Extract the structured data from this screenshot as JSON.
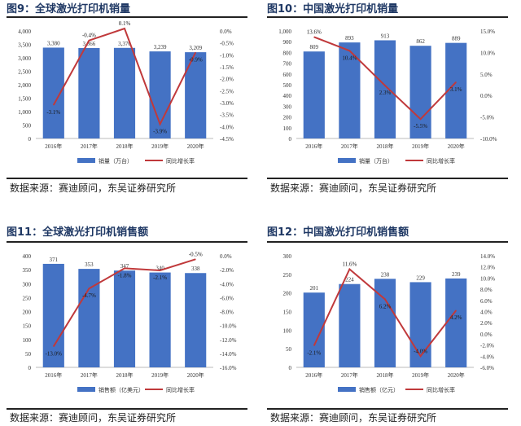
{
  "source_label": "数据来源：赛迪顾问，东吴证券研究所",
  "colors": {
    "bar": "#4472c4",
    "line": "#c0393b",
    "title": "#1f3864"
  },
  "chart_data": [
    {
      "type": "bar+line",
      "title": "图9：全球激光打印机销量",
      "categories": [
        "2016年",
        "2017年",
        "2018年",
        "2019年",
        "2020年"
      ],
      "series": [
        {
          "name": "销量（万台）",
          "type": "bar",
          "axis": "left",
          "values": [
            3380,
            3366,
            3370,
            3239,
            3209
          ],
          "labels": [
            "3,380",
            "3,366",
            "3,370",
            "3,239",
            "3,209"
          ]
        },
        {
          "name": "同比增长率",
          "type": "line",
          "axis": "right",
          "values": [
            -3.1,
            -0.4,
            0.1,
            -3.9,
            -0.9
          ],
          "labels": [
            "-3.1%",
            "-0.4%",
            "0.1%",
            "-3.9%",
            "-0.9%"
          ]
        }
      ],
      "ylim": [
        0,
        4000
      ],
      "yticks": [
        "0",
        "500",
        "1,000",
        "1,500",
        "2,000",
        "2,500",
        "3,000",
        "3,500",
        "4,000"
      ],
      "y2lim": [
        -4.5,
        0
      ],
      "y2ticks": [
        "-4.5%",
        "-4.0%",
        "-3.5%",
        "-3.0%",
        "-2.5%",
        "-2.0%",
        "-1.5%",
        "-1.0%",
        "-0.5%",
        "0.0%"
      ],
      "legend": "bottom"
    },
    {
      "type": "bar+line",
      "title": "图10：中国激光打印机销量",
      "categories": [
        "2016年",
        "2017年",
        "2018年",
        "2019年",
        "2020年"
      ],
      "series": [
        {
          "name": "销量（万台）",
          "type": "bar",
          "axis": "left",
          "values": [
            809,
            893,
            913,
            862,
            889
          ],
          "labels": [
            "809",
            "893",
            "913",
            "862",
            "889"
          ]
        },
        {
          "name": "同比增长率",
          "type": "line",
          "axis": "right",
          "values": [
            13.6,
            10.4,
            2.3,
            -5.5,
            3.1
          ],
          "labels": [
            "13.6%",
            "10.4%",
            "2.3%",
            "-5.5%",
            "3.1%"
          ]
        }
      ],
      "ylim": [
        0,
        1000
      ],
      "yticks": [
        "0",
        "100",
        "200",
        "300",
        "400",
        "500",
        "600",
        "700",
        "800",
        "900",
        "1,000"
      ],
      "y2lim": [
        -10,
        15
      ],
      "y2ticks": [
        "-10.0%",
        "-5.0%",
        "0.0%",
        "5.0%",
        "10.0%",
        "15.0%"
      ],
      "legend": "bottom"
    },
    {
      "type": "bar+line",
      "title": "图11：全球激光打印机销售额",
      "categories": [
        "2016年",
        "2017年",
        "2018年",
        "2019年",
        "2020年"
      ],
      "series": [
        {
          "name": "销售额（亿美元）",
          "type": "bar",
          "axis": "left",
          "values": [
            371,
            353,
            347,
            340,
            338
          ],
          "labels": [
            "371",
            "353",
            "347",
            "340",
            "338"
          ]
        },
        {
          "name": "同比增长率",
          "type": "line",
          "axis": "right",
          "values": [
            -13.0,
            -4.7,
            -1.8,
            -2.1,
            -0.5
          ],
          "labels": [
            "-13.0%",
            "-4.7%",
            "-1.8%",
            "-2.1%",
            "-0.5%"
          ]
        }
      ],
      "ylim": [
        0,
        400
      ],
      "yticks": [
        "0",
        "50",
        "100",
        "150",
        "200",
        "250",
        "300",
        "350",
        "400"
      ],
      "y2lim": [
        -16,
        0
      ],
      "y2ticks": [
        "-16.0%",
        "-14.0%",
        "-12.0%",
        "-10.0%",
        "-8.0%",
        "-6.0%",
        "-4.0%",
        "-2.0%",
        "0.0%"
      ],
      "legend": "bottom"
    },
    {
      "type": "bar+line",
      "title": "图12：中国激光打印机销售额",
      "categories": [
        "2016年",
        "2017年",
        "2018年",
        "2019年",
        "2020年"
      ],
      "series": [
        {
          "name": "销售额（亿元）",
          "type": "bar",
          "axis": "left",
          "values": [
            201,
            224,
            238,
            229,
            239
          ],
          "labels": [
            "201",
            "224",
            "238",
            "229",
            "239"
          ]
        },
        {
          "name": "同比增长率",
          "type": "line",
          "axis": "right",
          "values": [
            -2.1,
            11.6,
            6.2,
            -4.0,
            4.2
          ],
          "labels": [
            "-2.1%",
            "11.6%",
            "6.2%",
            "-4.0%",
            "4.2%"
          ]
        }
      ],
      "ylim": [
        0,
        300
      ],
      "yticks": [
        "0",
        "50",
        "100",
        "150",
        "200",
        "250",
        "300"
      ],
      "y2lim": [
        -6,
        14
      ],
      "y2ticks": [
        "-6.0%",
        "-4.0%",
        "-2.0%",
        "0.0%",
        "2.0%",
        "4.0%",
        "6.0%",
        "8.0%",
        "10.0%",
        "12.0%",
        "14.0%"
      ],
      "legend": "bottom"
    }
  ]
}
